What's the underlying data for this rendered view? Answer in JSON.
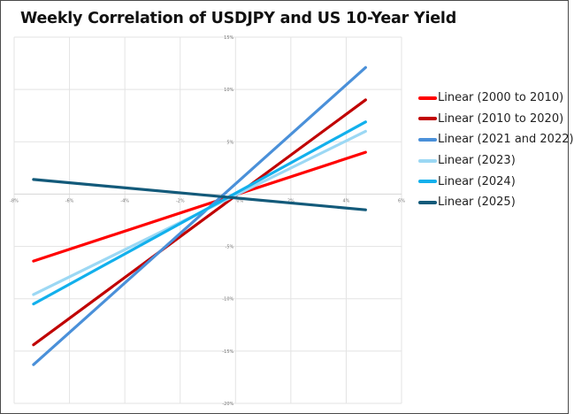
{
  "chart_data": {
    "type": "line",
    "title": "Weekly Correlation of USDJPY and US 10-Year Yield",
    "xlabel": "",
    "ylabel": "",
    "xlim": [
      -8,
      6
    ],
    "ylim": [
      -20,
      15
    ],
    "x_ticks": [
      -8,
      -6,
      -4,
      -2,
      0,
      2,
      4,
      6
    ],
    "x_tick_labels": [
      "-8%",
      "-6%",
      "-4%",
      "-2%",
      "0%",
      "2%",
      "4%",
      "6%"
    ],
    "y_ticks": [
      15,
      10,
      5,
      -5,
      -10,
      -15,
      -20
    ],
    "y_tick_labels": [
      "15%",
      "10%",
      "5%",
      "-5%",
      "-10%",
      "-15%",
      "-20%"
    ],
    "grid": true,
    "legend_position": "right",
    "series": [
      {
        "name": "Linear (2000 to 2010)",
        "color": "#ff0000",
        "x": [
          -7.3,
          4.7
        ],
        "y": [
          -6.4,
          4.0
        ]
      },
      {
        "name": "Linear (2010 to 2020)",
        "color": "#c00000",
        "x": [
          -7.3,
          4.7
        ],
        "y": [
          -14.4,
          9.0
        ]
      },
      {
        "name": "Linear (2021 and 2022)",
        "color": "#4a90d9",
        "x": [
          -7.3,
          4.7
        ],
        "y": [
          -16.3,
          12.1
        ]
      },
      {
        "name": "Linear (2023)",
        "color": "#9cd8f4",
        "x": [
          -7.3,
          4.7
        ],
        "y": [
          -9.6,
          6.0
        ]
      },
      {
        "name": "Linear (2024)",
        "color": "#12b0ec",
        "x": [
          -7.3,
          4.7
        ],
        "y": [
          -10.5,
          6.9
        ]
      },
      {
        "name": "Linear (2025)",
        "color": "#135a7a",
        "x": [
          -7.3,
          4.7
        ],
        "y": [
          1.4,
          -1.5
        ]
      }
    ]
  }
}
